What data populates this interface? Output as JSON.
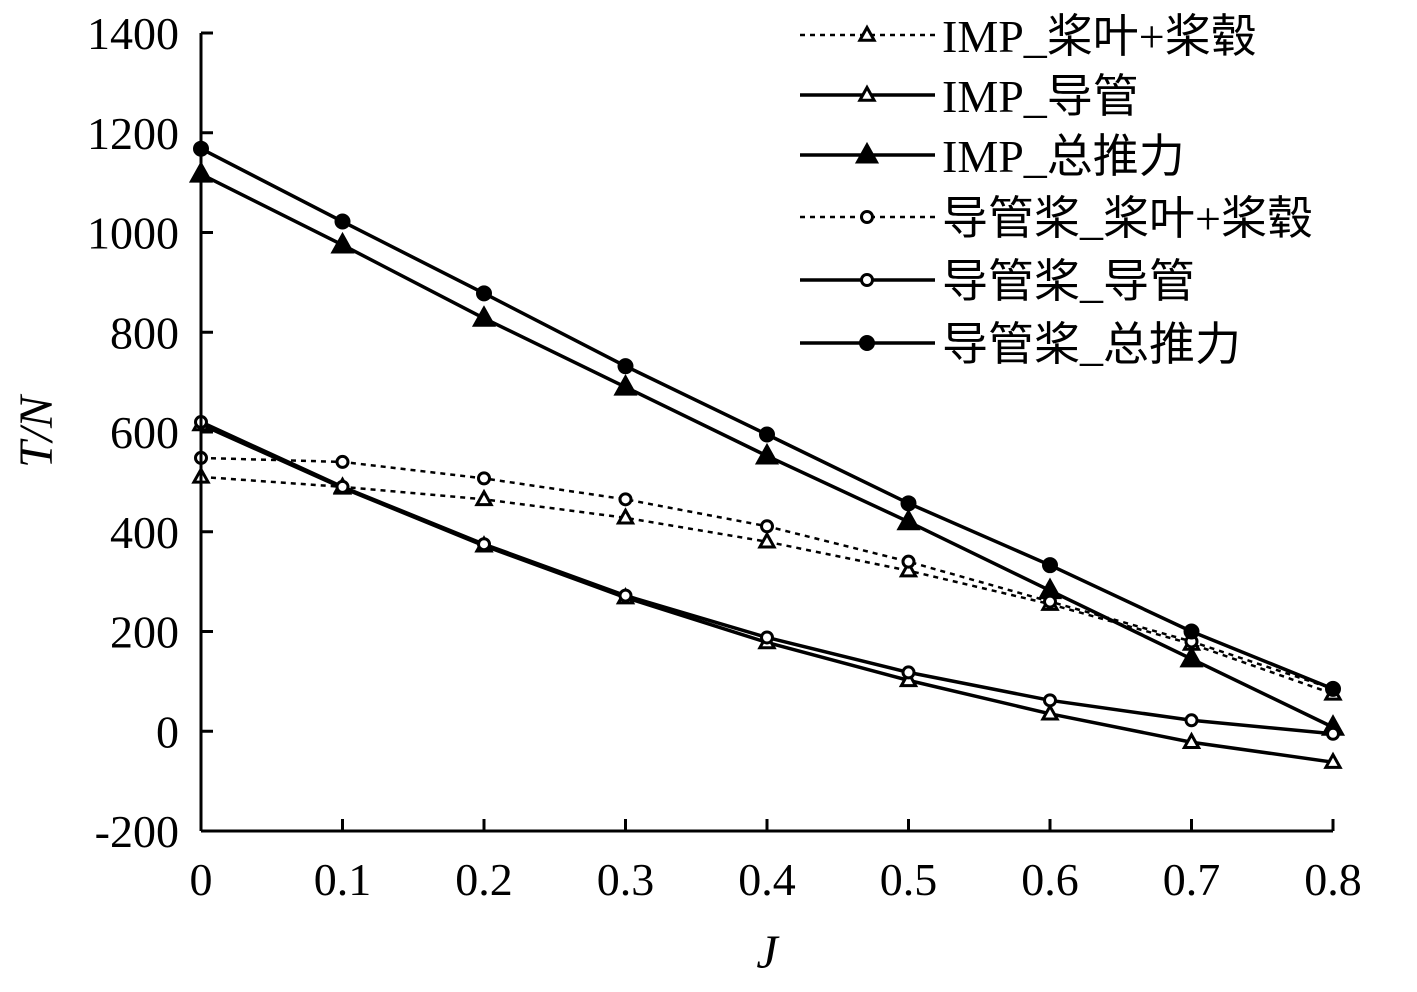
{
  "chart_data": {
    "type": "line",
    "title": "",
    "xlabel": "J",
    "ylabel": "T/N",
    "xlim": [
      0,
      0.8
    ],
    "ylim": [
      -200,
      1400
    ],
    "x_ticks": [
      "0",
      "0.1",
      "0.2",
      "0.3",
      "0.4",
      "0.5",
      "0.6",
      "0.7",
      "0.8"
    ],
    "y_ticks": [
      "-200",
      "0",
      "200",
      "400",
      "600",
      "800",
      "1000",
      "1200",
      "1400"
    ],
    "grid": false,
    "legend_position": "top-right",
    "x": [
      0,
      0.1,
      0.2,
      0.3,
      0.4,
      0.5,
      0.6,
      0.7,
      0.8
    ],
    "series": [
      {
        "name": "IMP_桨叶+桨毂",
        "line": "dotted",
        "marker": "triangle-open",
        "values": [
          510,
          490,
          465,
          428,
          380,
          322,
          255,
          175,
          75
        ]
      },
      {
        "name": "IMP_导管",
        "line": "solid",
        "marker": "triangle-open",
        "values": [
          615,
          488,
          372,
          268,
          178,
          102,
          35,
          -22,
          -62
        ]
      },
      {
        "name": "IMP_总推力",
        "line": "solid",
        "marker": "triangle-filled",
        "values": [
          1117,
          975,
          828,
          690,
          552,
          420,
          282,
          145,
          8
        ]
      },
      {
        "name": "导管桨_桨叶+桨毂",
        "line": "dotted",
        "marker": "circle-open",
        "values": [
          548,
          540,
          507,
          465,
          411,
          340,
          260,
          180,
          85
        ]
      },
      {
        "name": "导管桨_导管",
        "line": "solid",
        "marker": "circle-open",
        "values": [
          620,
          490,
          375,
          272,
          188,
          118,
          62,
          22,
          -5
        ]
      },
      {
        "name": "导管桨_总推力",
        "line": "solid",
        "marker": "circle-filled",
        "values": [
          1168,
          1022,
          878,
          732,
          595,
          457,
          333,
          200,
          85
        ]
      }
    ]
  }
}
